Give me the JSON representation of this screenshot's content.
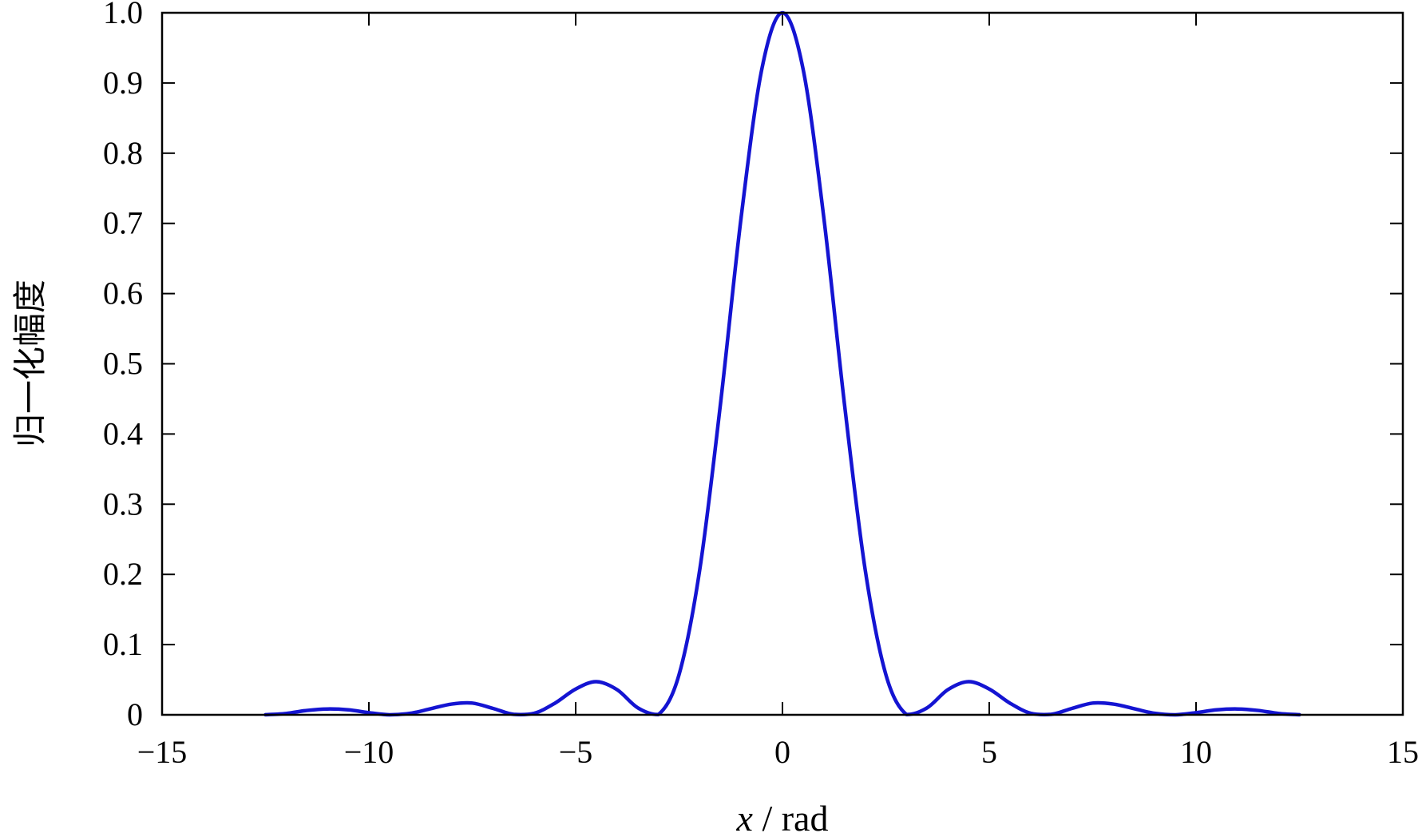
{
  "chart_data": {
    "type": "line",
    "xlabel_italic": "x",
    "xlabel_unit": " / rad",
    "ylabel": "归一化幅度",
    "xlim": [
      -15,
      15
    ],
    "ylim": [
      0,
      1.0
    ],
    "x_ticks": [
      -15,
      -10,
      -5,
      0,
      5,
      10,
      15
    ],
    "x_tick_labels": [
      "−15",
      "−10",
      "−5",
      "0",
      "5",
      "10",
      "15"
    ],
    "y_ticks": [
      0,
      0.1,
      0.2,
      0.3,
      0.4,
      0.5,
      0.6,
      0.7,
      0.8,
      0.9,
      1.0
    ],
    "y_tick_labels": [
      "0",
      "0.1",
      "0.2",
      "0.3",
      "0.4",
      "0.5",
      "0.6",
      "0.7",
      "0.8",
      "0.9",
      "1.0"
    ],
    "grid": false,
    "series": [
      {
        "color": "#1414d2",
        "x": [
          -12.5,
          -12.0,
          -11.5,
          -11.0,
          -10.5,
          -10.0,
          -9.5,
          -9.0,
          -8.5,
          -8.0,
          -7.5,
          -7.0,
          -6.5,
          -6.0,
          -5.5,
          -5.0,
          -4.5,
          -4.0,
          -3.5,
          -3.0,
          -2.5,
          -2.0,
          -1.5,
          -1.0,
          -0.5,
          0.0,
          0.5,
          1.0,
          1.5,
          2.0,
          2.5,
          3.0,
          3.5,
          4.0,
          4.5,
          5.0,
          5.5,
          6.0,
          6.5,
          7.0,
          7.5,
          8.0,
          8.5,
          9.0,
          9.5,
          10.0,
          10.5,
          11.0,
          11.5,
          12.0,
          12.5
        ],
        "y": [
          0.0001,
          0.0019,
          0.0062,
          0.0083,
          0.0071,
          0.003,
          0.0,
          0.0021,
          0.0087,
          0.0153,
          0.0167,
          0.0091,
          0.0007,
          0.0022,
          0.0166,
          0.0367,
          0.0472,
          0.0358,
          0.01,
          0.0004,
          0.0573,
          0.2067,
          0.4422,
          0.7081,
          0.9194,
          1.0,
          0.9194,
          0.7081,
          0.4422,
          0.2067,
          0.0573,
          0.0004,
          0.01,
          0.0358,
          0.0472,
          0.0367,
          0.0166,
          0.0022,
          0.0007,
          0.0091,
          0.0167,
          0.0153,
          0.0087,
          0.0021,
          0.0,
          0.003,
          0.0071,
          0.0083,
          0.0062,
          0.0019,
          0.0001
        ]
      }
    ]
  }
}
